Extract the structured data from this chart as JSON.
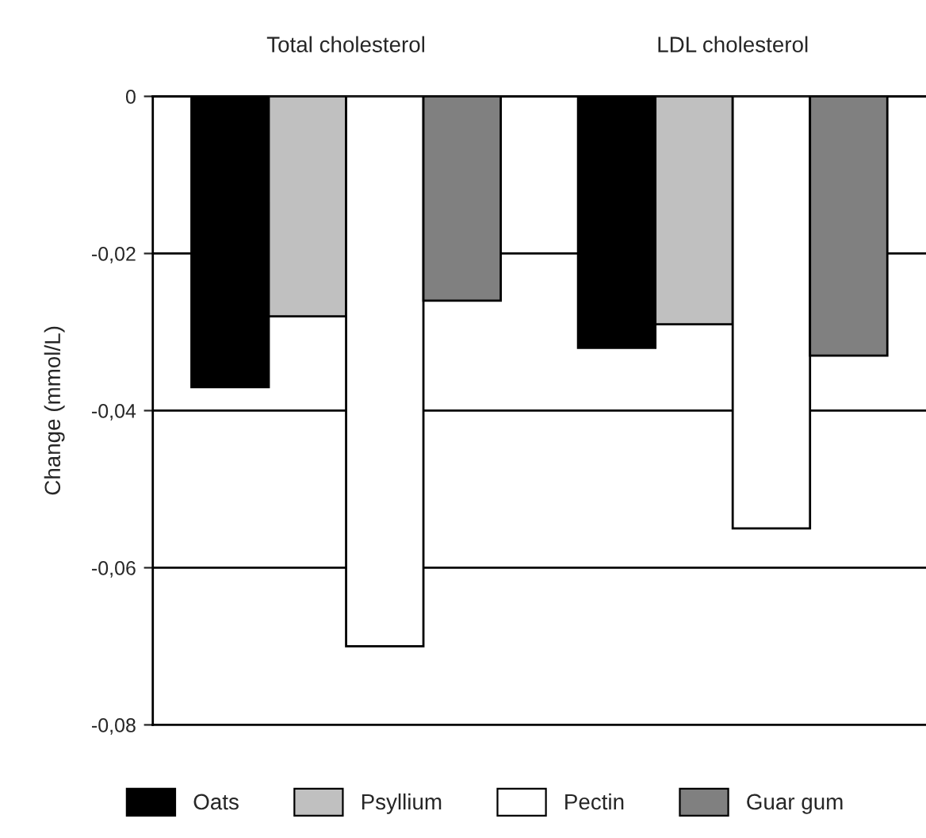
{
  "chart_data": {
    "type": "bar",
    "categories": [
      "Total cholesterol",
      "LDL cholesterol"
    ],
    "ylabel": "Change (mmol/L)",
    "series": [
      {
        "name": "Oats",
        "color": "#000000",
        "values": [
          -0.037,
          -0.032
        ]
      },
      {
        "name": "Psyllium",
        "color": "#c0c0c0",
        "values": [
          -0.028,
          -0.029
        ]
      },
      {
        "name": "Pectin",
        "color": "#ffffff",
        "values": [
          -0.07,
          -0.055
        ]
      },
      {
        "name": "Guar gum",
        "color": "#808080",
        "values": [
          -0.026,
          -0.033
        ]
      }
    ],
    "ylim": [
      -0.08,
      0
    ],
    "yticks": [
      {
        "value": -0.08,
        "label": "-0,08"
      },
      {
        "value": -0.06,
        "label": "-0,06"
      },
      {
        "value": -0.04,
        "label": "-0,04"
      },
      {
        "value": -0.02,
        "label": "-0,02"
      },
      0
    ],
    "grid": "y",
    "legend": "bottom"
  }
}
